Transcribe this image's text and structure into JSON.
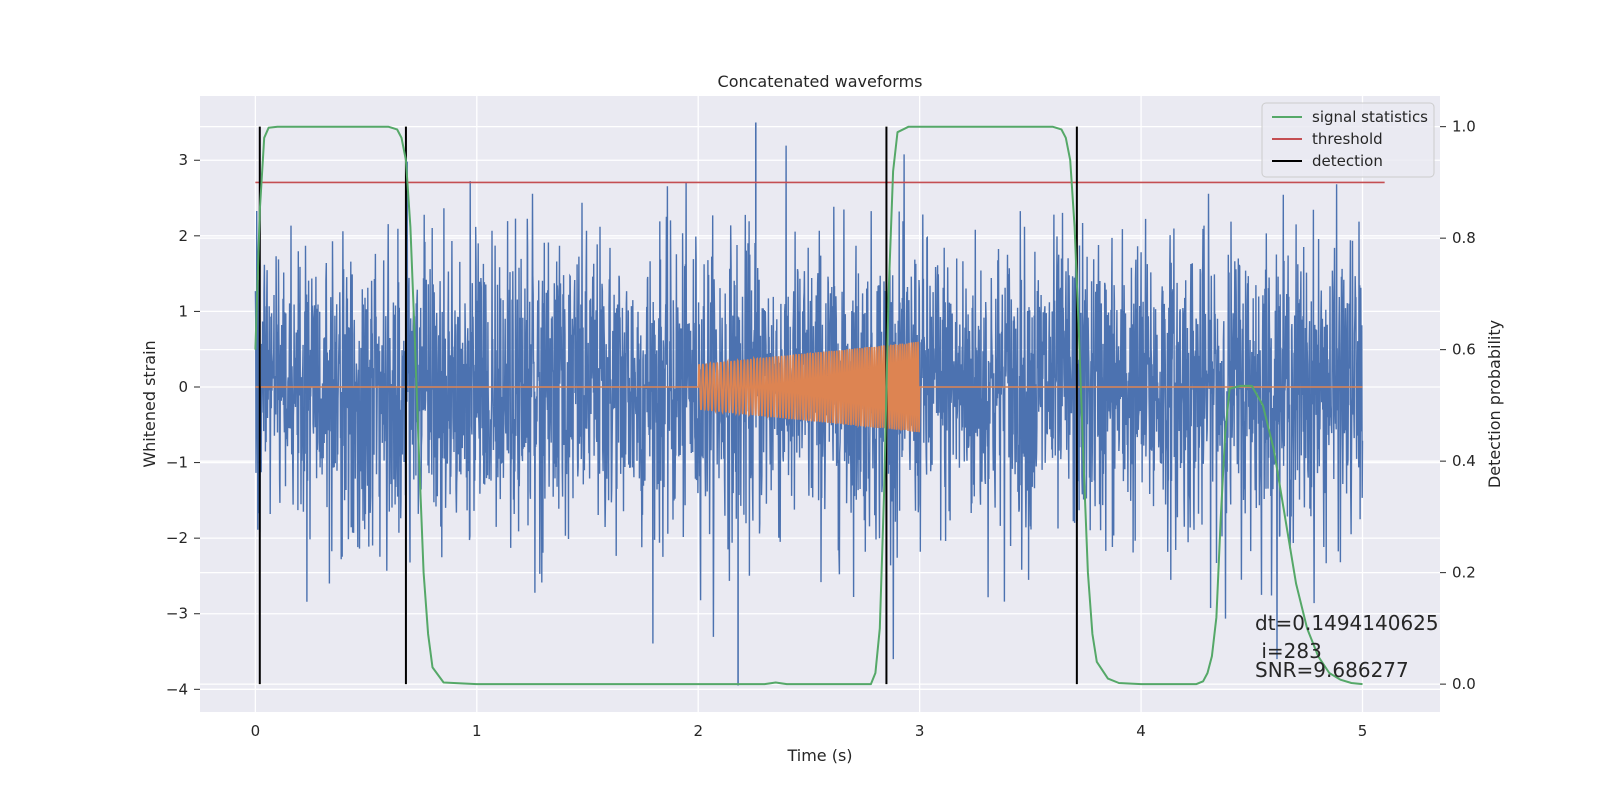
{
  "chart_data": {
    "type": "line",
    "title": "Concatenated waveforms",
    "xlabel": "Time (s)",
    "ylabel": "Whitened strain",
    "y2label": "Detection probability",
    "xlim": [
      -0.25,
      5.35
    ],
    "ylim": [
      -4.3,
      3.85
    ],
    "y2lim": [
      -0.05,
      1.055
    ],
    "xticks": [
      0,
      1,
      2,
      3,
      4,
      5
    ],
    "yticks": [
      -4,
      -3,
      -2,
      -1,
      0,
      1,
      2,
      3
    ],
    "y2ticks": [
      0.0,
      0.2,
      0.4,
      0.6,
      0.8,
      1.0
    ],
    "grid": true,
    "legend_placement": "top-right",
    "colors": {
      "strain": "#4c72b0",
      "template": "#dd8452",
      "signal": "#55a868",
      "threshold": "#c44e52",
      "detection": "#000000",
      "background": "#eaeaf2"
    },
    "series": [
      {
        "name": "signal statistics",
        "axis": "right",
        "x": [
          0.0,
          0.02,
          0.04,
          0.06,
          0.1,
          0.2,
          0.4,
          0.6,
          0.64,
          0.66,
          0.68,
          0.7,
          0.72,
          0.74,
          0.76,
          0.78,
          0.8,
          0.85,
          1.0,
          2.0,
          2.3,
          2.35,
          2.4,
          2.78,
          2.8,
          2.82,
          2.84,
          2.86,
          2.88,
          2.9,
          2.95,
          3.2,
          3.6,
          3.64,
          3.66,
          3.68,
          3.7,
          3.72,
          3.74,
          3.76,
          3.78,
          3.8,
          3.85,
          3.9,
          4.0,
          4.25,
          4.28,
          4.3,
          4.32,
          4.34,
          4.36,
          4.38,
          4.4,
          4.45,
          4.5,
          4.55,
          4.6,
          4.65,
          4.7,
          4.75,
          4.8,
          4.85,
          4.9,
          4.95,
          5.0
        ],
        "values": [
          0.6,
          0.85,
          0.98,
          0.998,
          1.0,
          1.0,
          1.0,
          1.0,
          0.995,
          0.98,
          0.94,
          0.82,
          0.62,
          0.4,
          0.2,
          0.09,
          0.03,
          0.003,
          0.0,
          0.0,
          0.0,
          0.003,
          0.0,
          0.0,
          0.02,
          0.1,
          0.35,
          0.7,
          0.92,
          0.99,
          1.0,
          1.0,
          1.0,
          0.995,
          0.98,
          0.94,
          0.82,
          0.62,
          0.4,
          0.2,
          0.09,
          0.04,
          0.01,
          0.002,
          0.0,
          0.0,
          0.005,
          0.02,
          0.05,
          0.12,
          0.3,
          0.45,
          0.53,
          0.535,
          0.535,
          0.5,
          0.42,
          0.3,
          0.18,
          0.1,
          0.05,
          0.02,
          0.008,
          0.002,
          0.0
        ]
      },
      {
        "name": "threshold",
        "axis": "right",
        "x": [
          0.0,
          5.1
        ],
        "values": [
          0.9,
          0.9
        ]
      },
      {
        "name": "detection",
        "axis": "right",
        "x": [
          0.02,
          0.68,
          2.85,
          3.71
        ],
        "values": [
          [
            0.0,
            1.0
          ],
          [
            0.0,
            1.0
          ],
          [
            0.0,
            1.0
          ],
          [
            0.0,
            1.0
          ]
        ]
      },
      {
        "axis": "left",
        "x_range": [
          0.0,
          5.0
        ],
        "amplitude_typical": 1.3,
        "values_peak": [
          3.5,
          -3.95
        ]
      },
      {
        "axis": "left",
        "x_range": [
          2.0,
          3.0
        ],
        "envelope_start": 0.3,
        "envelope_end": 0.6,
        "cycles": 80
      }
    ],
    "annotations": [
      "dt=0.1494140625",
      " i=283",
      "SNR=9.686277"
    ]
  }
}
